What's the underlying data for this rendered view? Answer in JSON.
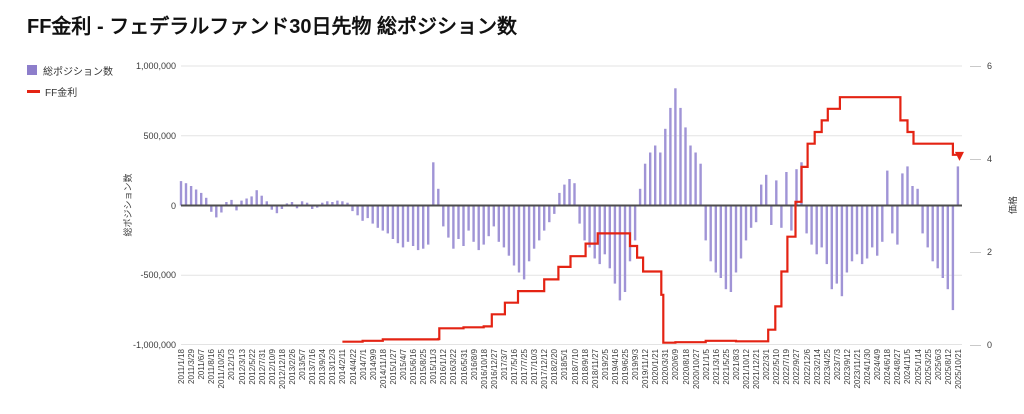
{
  "title": "FF金利 - フェデラルファンド30日先物 総ポジション数",
  "legend": [
    {
      "label": "総ポジション数",
      "color": "#8d7ecb",
      "type": "square"
    },
    {
      "label": "FF金利",
      "color": "#e42313",
      "type": "line"
    }
  ],
  "colors": {
    "bar_fill": "#a094d6",
    "line": "#e42313",
    "grid": "#e3e3e3",
    "zero_line": "#4d4d4d",
    "text": "#3c3c3c"
  },
  "chart_data": {
    "type": "combo-bar-line",
    "title": "FF金利 - フェデラルファンド30日先物 総ポジション数",
    "left_axis": {
      "title": "総ポジション数",
      "ticks": [
        "1,000,000",
        "500,000",
        "0",
        "-500,000",
        "-1,000,000"
      ],
      "range": [
        -1000000,
        1000000
      ],
      "grid": true
    },
    "right_axis": {
      "title": "価格",
      "ticks": [
        "6",
        "4",
        "2",
        "0"
      ],
      "range": [
        0,
        6
      ],
      "grid": false
    },
    "x_labels": [
      "2011/1/18",
      "2011/3/29",
      "2011/6/7",
      "2011/8/16",
      "2011/10/25",
      "2012/1/3",
      "2012/3/13",
      "2012/5/22",
      "2012/7/31",
      "2012/10/9",
      "2012/12/18",
      "2013/2/26",
      "2013/5/7",
      "2013/7/16",
      "2013/9/24",
      "2013/12/3",
      "2014/2/11",
      "2014/4/22",
      "2014/7/1",
      "2014/9/9",
      "2014/11/18",
      "2015/1/27",
      "2015/4/7",
      "2015/6/16",
      "2015/8/25",
      "2015/11/3",
      "2016/1/12",
      "2016/3/22",
      "2016/5/31",
      "2016/8/9",
      "2016/10/18",
      "2016/12/27",
      "2017/3/7",
      "2017/5/16",
      "2017/7/25",
      "2017/10/3",
      "2017/12/12",
      "2018/2/20",
      "2018/5/1",
      "2018/7/10",
      "2018/9/18",
      "2018/11/27",
      "2019/2/5",
      "2019/4/16",
      "2019/6/25",
      "2019/9/3",
      "2019/11/12",
      "2020/1/21",
      "2020/3/31",
      "2020/6/9",
      "2020/8/18",
      "2020/10/27",
      "2021/1/5",
      "2021/3/16",
      "2021/5/25",
      "2021/8/3",
      "2021/10/12",
      "2021/12/21",
      "2022/3/1",
      "2022/5/10",
      "2022/7/19",
      "2022/9/27",
      "2022/12/6",
      "2023/2/14",
      "2023/4/25",
      "2023/7/3",
      "2023/9/12",
      "2023/11/21",
      "2024/1/30",
      "2024/4/9",
      "2024/6/18",
      "2024/8/27",
      "2024/11/5",
      "2025/1/14",
      "2025/3/25",
      "2025/6/3",
      "2025/8/12",
      "2025/10/21"
    ],
    "bar_series": {
      "name": "総ポジション数",
      "color": "#a094d6",
      "index_step": 0.5,
      "unit": "contracts (thousands)",
      "values_thousands": [
        175,
        160,
        140,
        115,
        90,
        55,
        -45,
        -85,
        -50,
        25,
        40,
        -35,
        35,
        50,
        65,
        110,
        70,
        30,
        -30,
        -55,
        -25,
        15,
        25,
        -20,
        30,
        20,
        -25,
        -15,
        20,
        30,
        25,
        35,
        30,
        20,
        -40,
        -70,
        -110,
        -90,
        -130,
        -160,
        -180,
        -200,
        -240,
        -270,
        -300,
        -260,
        -290,
        -320,
        -310,
        -280,
        310,
        120,
        -150,
        -230,
        -310,
        -240,
        -290,
        -180,
        -260,
        -320,
        -280,
        -220,
        -150,
        -260,
        -300,
        -360,
        -430,
        -480,
        -530,
        -400,
        -310,
        -250,
        -180,
        -120,
        -60,
        90,
        150,
        190,
        160,
        -130,
        -250,
        -300,
        -380,
        -420,
        -350,
        -450,
        -560,
        -680,
        -620,
        -400,
        -250,
        120,
        300,
        380,
        430,
        380,
        550,
        700,
        840,
        700,
        560,
        430,
        380,
        300,
        -250,
        -400,
        -480,
        -520,
        -600,
        -620,
        -480,
        -380,
        -250,
        -160,
        -120,
        150,
        220,
        -140,
        180,
        -160,
        240,
        -180,
        260,
        310,
        -200,
        -280,
        -350,
        -300,
        -420,
        -600,
        -560,
        -650,
        -480,
        -400,
        -350,
        -420,
        -380,
        -300,
        -360,
        -260,
        250,
        -200,
        -280,
        230,
        280,
        140,
        120,
        -200,
        -300,
        -400,
        -450,
        -520,
        -600,
        -750,
        280
      ]
    },
    "line_series": {
      "name": "FF金利",
      "color": "#e42313",
      "unit": "percent",
      "steps": [
        [
          16.0,
          0.07
        ],
        [
          18,
          0.09
        ],
        [
          20,
          0.12
        ],
        [
          23,
          0.12
        ],
        [
          25.5,
          0.13
        ],
        [
          25.6,
          0.36
        ],
        [
          28,
          0.38
        ],
        [
          30,
          0.4
        ],
        [
          30.8,
          0.66
        ],
        [
          32.1,
          0.91
        ],
        [
          33.4,
          1.16
        ],
        [
          36.0,
          1.41
        ],
        [
          37.4,
          1.68
        ],
        [
          38.6,
          1.91
        ],
        [
          40.1,
          2.18
        ],
        [
          41.3,
          2.4
        ],
        [
          44.5,
          2.13
        ],
        [
          45.2,
          1.88
        ],
        [
          45.8,
          1.58
        ],
        [
          47.6,
          1.08
        ],
        [
          47.8,
          0.05
        ],
        [
          49,
          0.06
        ],
        [
          52,
          0.09
        ],
        [
          55,
          0.08
        ],
        [
          58.2,
          0.33
        ],
        [
          58.9,
          0.83
        ],
        [
          59.5,
          1.58
        ],
        [
          60.1,
          2.33
        ],
        [
          60.9,
          3.08
        ],
        [
          61.5,
          3.83
        ],
        [
          62.1,
          4.33
        ],
        [
          62.8,
          4.58
        ],
        [
          63.5,
          4.83
        ],
        [
          64.1,
          5.08
        ],
        [
          65.3,
          5.33
        ],
        [
          71.3,
          4.83
        ],
        [
          72.0,
          4.58
        ],
        [
          72.6,
          4.33
        ],
        [
          76.5,
          4.09
        ],
        [
          77.3,
          4.09
        ]
      ]
    }
  }
}
